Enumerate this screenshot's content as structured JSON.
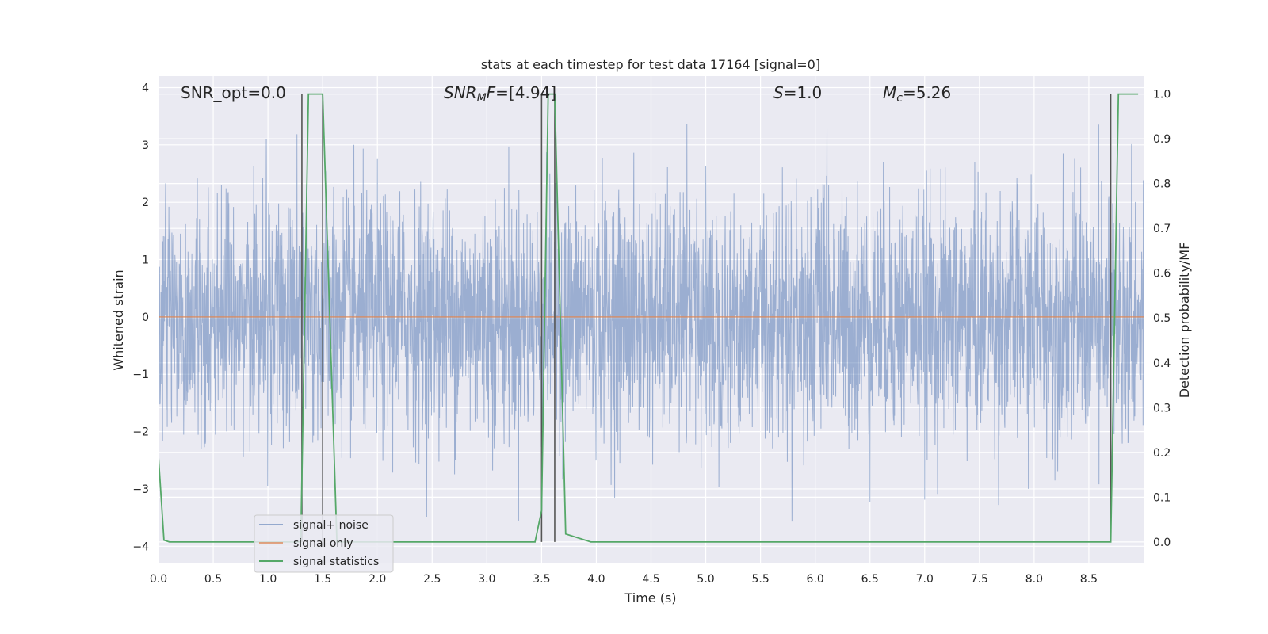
{
  "chart_data": {
    "type": "line",
    "title": "stats at each timestep for test data 17164 [signal=0]",
    "xlabel": "Time (s)",
    "ylabel": "Whitened strain",
    "ylabel_right": "Detection probability/MF",
    "xlim": [
      0.0,
      9.0
    ],
    "ylim": [
      -4.3,
      4.2
    ],
    "ylim_right": [
      -0.048,
      1.04
    ],
    "x_ticks": [
      0.0,
      0.5,
      1.0,
      1.5,
      2.0,
      2.5,
      3.0,
      3.5,
      4.0,
      4.5,
      5.0,
      5.5,
      6.0,
      6.5,
      7.0,
      7.5,
      8.0,
      8.5
    ],
    "x_tick_labels": [
      "0.0",
      "0.5",
      "1.0",
      "1.5",
      "2.0",
      "2.5",
      "3.0",
      "3.5",
      "4.0",
      "4.5",
      "5.0",
      "5.5",
      "6.0",
      "6.5",
      "7.0",
      "7.5",
      "8.0",
      "8.5"
    ],
    "y_ticks": [
      -4,
      -3,
      -2,
      -1,
      0,
      1,
      2,
      3,
      4
    ],
    "y_tick_labels": [
      "−4",
      "−3",
      "−2",
      "−1",
      "0",
      "1",
      "2",
      "3",
      "4"
    ],
    "y_ticks_right": [
      0.0,
      0.1,
      0.2,
      0.3,
      0.4,
      0.5,
      0.6,
      0.7,
      0.8,
      0.9,
      1.0
    ],
    "y_tick_labels_right": [
      "0.0",
      "0.1",
      "0.2",
      "0.3",
      "0.4",
      "0.5",
      "0.6",
      "0.7",
      "0.8",
      "0.9",
      "1.0"
    ],
    "grid": true,
    "legend_position": "bottom-left",
    "annotations": {
      "snr_opt": "SNR_opt=0.0",
      "snr_mf_main": "SNR",
      "snr_mf_sub": "M",
      "snr_mf_tail": "F=[4.94]",
      "s_italic": "S",
      "s_value": "=1.0",
      "mc_main": "M",
      "mc_sub": "c",
      "mc_value": "=5.26"
    },
    "series": [
      {
        "name": "signal+ noise",
        "axis": "left",
        "color": "#4c72b0",
        "description_values": {
          "duration_s": 9.0,
          "envelope_max": 3.45,
          "envelope_min": -4.0,
          "typical_abs": 1.5
        }
      },
      {
        "name": "signal only",
        "axis": "left",
        "color": "#dd8452",
        "x": [
          0.0,
          9.0
        ],
        "y": [
          0.0,
          0.0
        ]
      },
      {
        "name": "signal statistics",
        "axis": "right",
        "color": "#55a868",
        "x": [
          0.0,
          0.05,
          0.1,
          1.3,
          1.37,
          1.5,
          1.63,
          3.44,
          3.5,
          3.56,
          3.62,
          3.72,
          3.95,
          8.7,
          8.77,
          8.95
        ],
        "y": [
          0.19,
          0.004,
          0.0,
          0.0,
          1.0,
          1.0,
          0.0,
          0.0,
          0.07,
          1.0,
          1.0,
          0.018,
          0.0,
          0.0,
          1.0,
          1.0
        ]
      }
    ],
    "vertical_markers": [
      {
        "x": 1.31,
        "y_top": 1.0,
        "y_bottom": 0.0
      },
      {
        "x": 1.5,
        "y_top": 1.0,
        "y_bottom": 0.0
      },
      {
        "x": 3.5,
        "y_top": 1.0,
        "y_bottom": 0.0
      },
      {
        "x": 3.62,
        "y_top": 1.0,
        "y_bottom": 0.0
      },
      {
        "x": 8.7,
        "y_top": 1.0,
        "y_bottom": 0.0
      }
    ],
    "colors": {
      "background": "#eaeaf2",
      "grid": "#ffffff",
      "noise": "#4c72b0",
      "signal": "#dd8452",
      "stats": "#55a868",
      "markers": "#555555"
    }
  }
}
